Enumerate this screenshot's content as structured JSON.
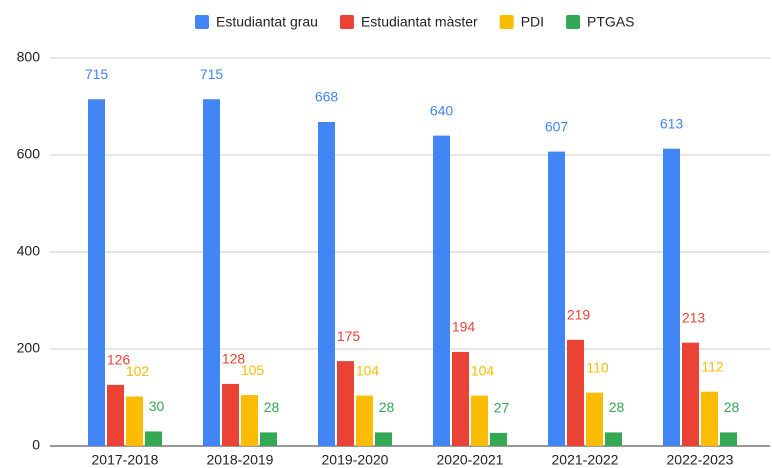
{
  "chart_data": {
    "type": "bar",
    "categories": [
      "2017-2018",
      "2018-2019",
      "2019-2020",
      "2020-2021",
      "2021-2022",
      "2022-2023"
    ],
    "series": [
      {
        "name": "Estudiantat grau",
        "color": "#4285f4",
        "values": [
          715,
          715,
          668,
          640,
          607,
          613
        ]
      },
      {
        "name": "Estudiantat màster",
        "color": "#ea4335",
        "values": [
          126,
          128,
          175,
          194,
          219,
          213
        ]
      },
      {
        "name": "PDI",
        "color": "#fbbc04",
        "values": [
          102,
          105,
          104,
          104,
          110,
          112
        ]
      },
      {
        "name": "PTGAS",
        "color": "#34a853",
        "values": [
          30,
          28,
          28,
          27,
          28,
          28
        ]
      }
    ],
    "ylim": [
      0,
      800
    ],
    "yticks": [
      0,
      200,
      400,
      600,
      800
    ],
    "grid": true,
    "legend": "top"
  }
}
